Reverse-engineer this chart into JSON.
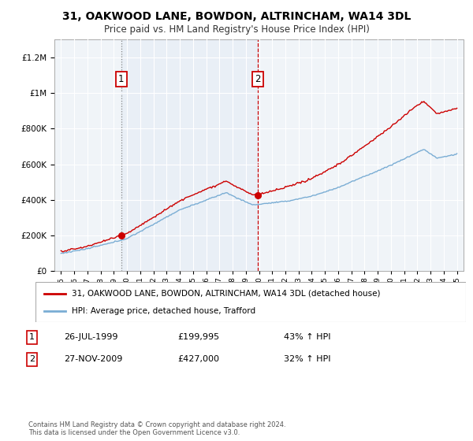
{
  "title": "31, OAKWOOD LANE, BOWDON, ALTRINCHAM, WA14 3DL",
  "subtitle": "Price paid vs. HM Land Registry's House Price Index (HPI)",
  "legend_label_red": "31, OAKWOOD LANE, BOWDON, ALTRINCHAM, WA14 3DL (detached house)",
  "legend_label_blue": "HPI: Average price, detached house, Trafford",
  "sale1_date": "26-JUL-1999",
  "sale1_price": "£199,995",
  "sale1_hpi": "43% ↑ HPI",
  "sale2_date": "27-NOV-2009",
  "sale2_price": "£427,000",
  "sale2_hpi": "32% ↑ HPI",
  "copyright": "Contains HM Land Registry data © Crown copyright and database right 2024.\nThis data is licensed under the Open Government Licence v3.0.",
  "sale1_x": 1999.57,
  "sale1_y": 199995,
  "sale2_x": 2009.9,
  "sale2_y": 427000,
  "ylim": [
    0,
    1300000
  ],
  "xlim": [
    1994.5,
    2025.5
  ],
  "bg_color": "#f0f4f8",
  "plot_bg": "#f0f4f8",
  "red_color": "#cc0000",
  "blue_color": "#7aadd4",
  "shade_color": "#dde8f5",
  "grid_color": "#ffffff",
  "title_fontsize": 10,
  "subtitle_fontsize": 8.5
}
